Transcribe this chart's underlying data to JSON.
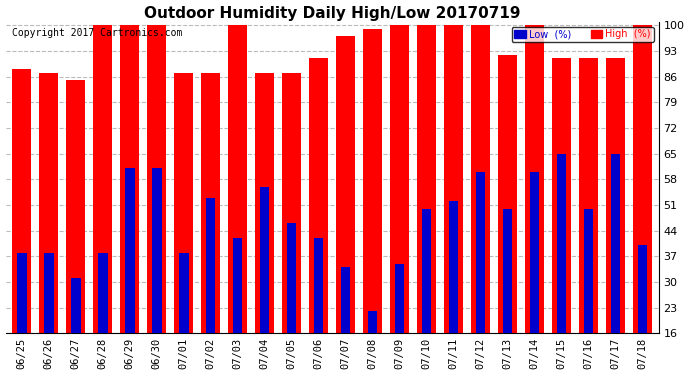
{
  "title": "Outdoor Humidity Daily High/Low 20170719",
  "copyright": "Copyright 2017 Cartronics.com",
  "dates": [
    "06/25",
    "06/26",
    "06/27",
    "06/28",
    "06/29",
    "06/30",
    "07/01",
    "07/02",
    "07/03",
    "07/04",
    "07/05",
    "07/06",
    "07/07",
    "07/08",
    "07/09",
    "07/10",
    "07/11",
    "07/12",
    "07/13",
    "07/14",
    "07/15",
    "07/16",
    "07/17",
    "07/18"
  ],
  "high": [
    88,
    87,
    85,
    100,
    100,
    100,
    87,
    87,
    100,
    87,
    87,
    91,
    97,
    99,
    100,
    100,
    100,
    100,
    92,
    100,
    91,
    91,
    91,
    100
  ],
  "low": [
    38,
    38,
    31,
    38,
    61,
    61,
    38,
    53,
    42,
    56,
    46,
    42,
    34,
    22,
    35,
    50,
    52,
    60,
    50,
    60,
    65,
    50,
    65,
    40
  ],
  "high_color": "#ff0000",
  "low_color": "#0000cc",
  "bg_color": "#ffffff",
  "grid_color": "#bbbbbb",
  "ylim": [
    16,
    101
  ],
  "yticks": [
    16,
    23,
    30,
    37,
    44,
    51,
    58,
    65,
    72,
    79,
    86,
    93,
    100
  ],
  "legend_low_label": "Low  (%)",
  "legend_high_label": "High  (%)",
  "title_fontsize": 11,
  "copyright_fontsize": 7,
  "tick_fontsize": 7.5,
  "ytick_fontsize": 8
}
